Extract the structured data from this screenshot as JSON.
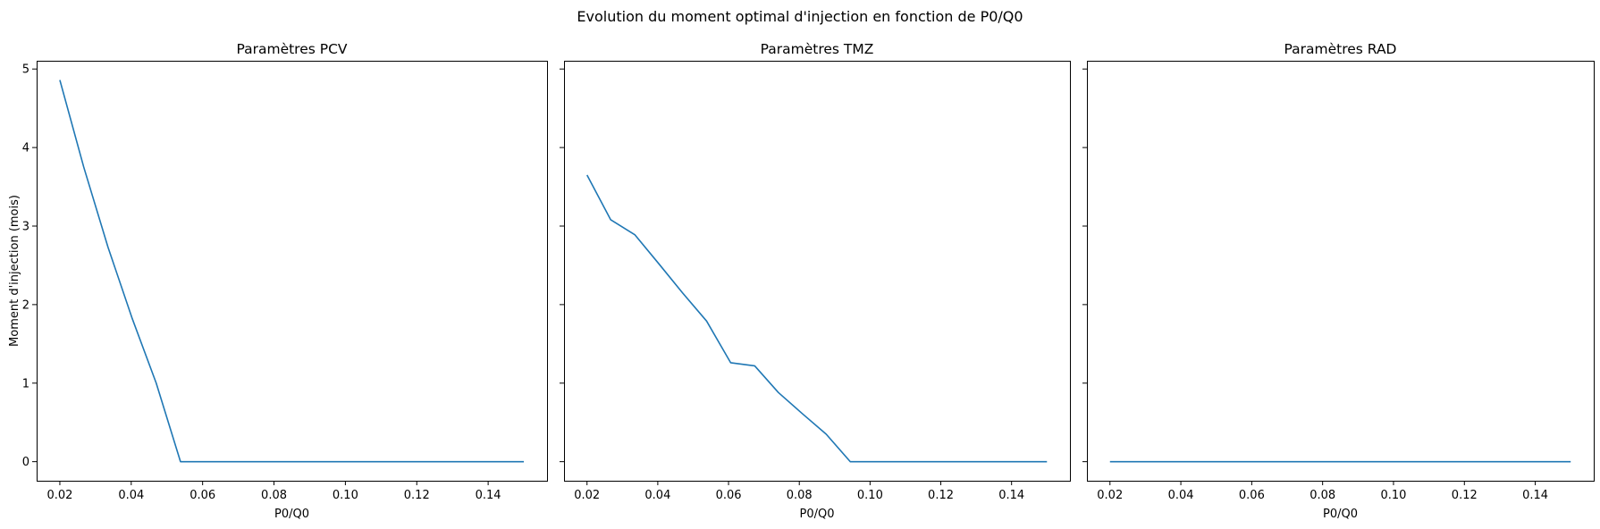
{
  "suptitle": "Evolution du moment optimal d'injection en fonction de P0/Q0",
  "line_color": "#1f77b4",
  "chart_data": [
    {
      "type": "line",
      "title": "Paramètres PCV",
      "xlabel": "P0/Q0",
      "ylabel": "Moment d'injection (mois)",
      "xlim": [
        0.0135,
        0.1565
      ],
      "ylim": [
        -0.243,
        5.105
      ],
      "xticks": [
        "0.02",
        "0.04",
        "0.06",
        "0.08",
        "0.10",
        "0.12",
        "0.14"
      ],
      "yticks": [
        "0",
        "1",
        "2",
        "3",
        "4",
        "5"
      ],
      "x": [
        0.02,
        0.0267,
        0.0335,
        0.0403,
        0.047,
        0.0538,
        0.06,
        0.08,
        0.1,
        0.12,
        0.15
      ],
      "y": [
        4.86,
        3.75,
        2.73,
        1.82,
        1.0,
        0.0,
        0.0,
        0.0,
        0.0,
        0.0,
        0.0
      ]
    },
    {
      "type": "line",
      "title": "Paramètres TMZ",
      "xlabel": "P0/Q0",
      "ylabel": "",
      "xlim": [
        0.0135,
        0.1565
      ],
      "ylim": [
        -0.243,
        5.105
      ],
      "xticks": [
        "0.02",
        "0.04",
        "0.06",
        "0.08",
        "0.10",
        "0.12",
        "0.14"
      ],
      "yticks": [
        "0",
        "1",
        "2",
        "3",
        "4",
        "5"
      ],
      "x": [
        0.02,
        0.0267,
        0.0335,
        0.0403,
        0.047,
        0.0538,
        0.0606,
        0.0674,
        0.0741,
        0.0809,
        0.0876,
        0.0944,
        0.1,
        0.12,
        0.15
      ],
      "y": [
        3.65,
        3.08,
        2.89,
        2.52,
        2.15,
        1.79,
        1.26,
        1.22,
        0.88,
        0.61,
        0.35,
        0.0,
        0.0,
        0.0,
        0.0
      ]
    },
    {
      "type": "line",
      "title": "Paramètres RAD",
      "xlabel": "P0/Q0",
      "ylabel": "",
      "xlim": [
        0.0135,
        0.1565
      ],
      "ylim": [
        -0.243,
        5.105
      ],
      "xticks": [
        "0.02",
        "0.04",
        "0.06",
        "0.08",
        "0.10",
        "0.12",
        "0.14"
      ],
      "yticks": [
        "0",
        "1",
        "2",
        "3",
        "4",
        "5"
      ],
      "x": [
        0.02,
        0.15
      ],
      "y": [
        0.0,
        0.0
      ]
    }
  ]
}
